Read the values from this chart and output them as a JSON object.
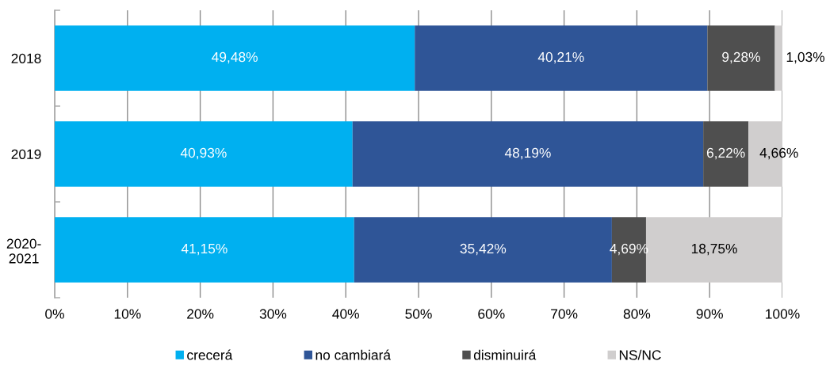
{
  "chart_data": {
    "type": "bar",
    "orientation": "horizontal",
    "stacked": true,
    "categories": [
      "2018",
      "2019",
      "2020-2021"
    ],
    "series": [
      {
        "name": "crecerá",
        "color": "#00b0f0",
        "values": [
          49.48,
          40.93,
          41.15
        ],
        "value_labels": [
          "49,48%",
          "40,93%",
          "41,15%"
        ]
      },
      {
        "name": "no cambiará",
        "color": "#2f5597",
        "values": [
          40.21,
          48.19,
          35.42
        ],
        "value_labels": [
          "40,21%",
          "48,19%",
          "35,42%"
        ]
      },
      {
        "name": "disminuirá",
        "color": "#4f4f4f",
        "values": [
          9.28,
          6.22,
          4.69
        ],
        "value_labels": [
          "9,28%",
          "6,22%",
          "4,69%"
        ]
      },
      {
        "name": "NS/NC",
        "color": "#d0cece",
        "values": [
          1.03,
          4.66,
          18.75
        ],
        "value_labels": [
          "1,03%",
          "4,66%",
          "18,75%"
        ]
      }
    ],
    "xlim": [
      0,
      100
    ],
    "xticks": [
      {
        "value": 0,
        "label": "0%"
      },
      {
        "value": 10,
        "label": "10%"
      },
      {
        "value": 20,
        "label": "20%"
      },
      {
        "value": 30,
        "label": "30%"
      },
      {
        "value": 40,
        "label": "40%"
      },
      {
        "value": 50,
        "label": "50%"
      },
      {
        "value": 60,
        "label": "60%"
      },
      {
        "value": 70,
        "label": "70%"
      },
      {
        "value": 80,
        "label": "80%"
      },
      {
        "value": 90,
        "label": "90%"
      },
      {
        "value": 100,
        "label": "100%"
      }
    ],
    "grid": "x",
    "legend": "bottom"
  }
}
